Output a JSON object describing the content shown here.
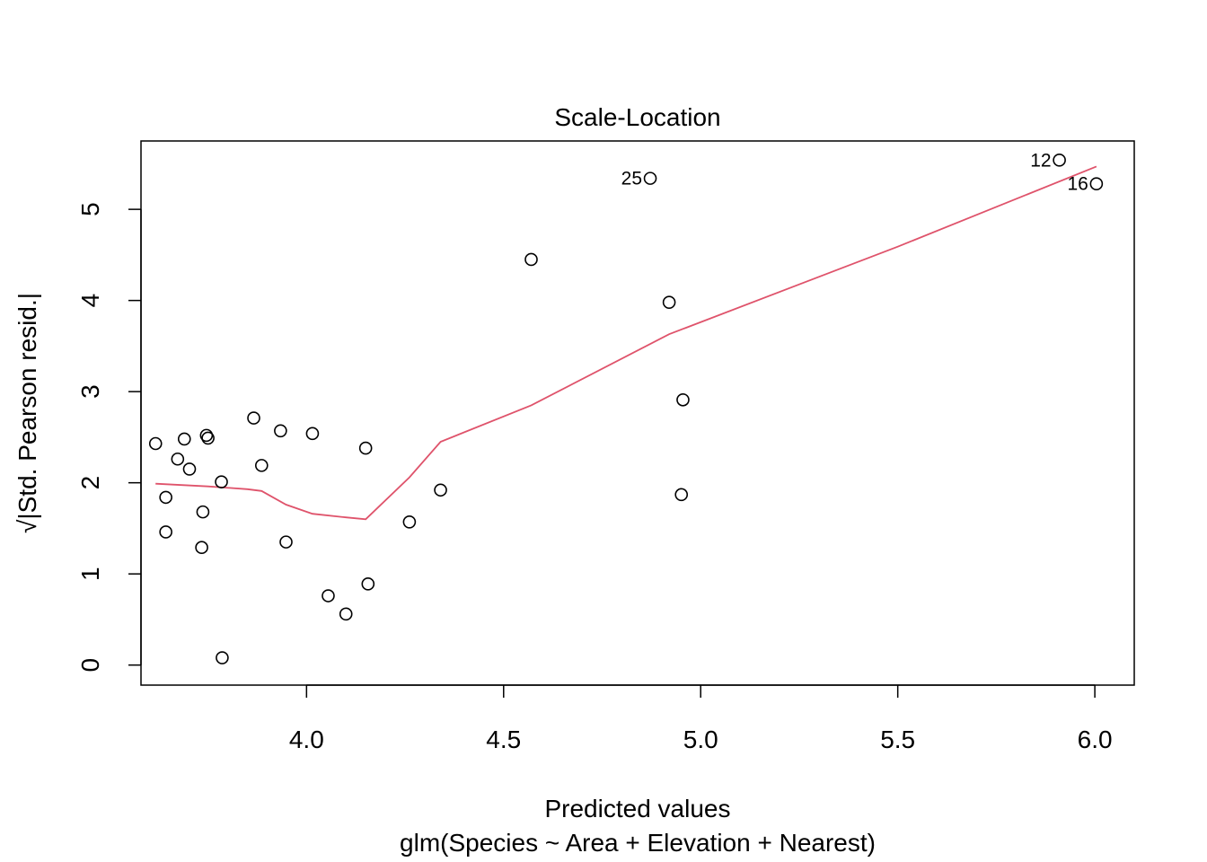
{
  "chart_data": {
    "type": "scatter",
    "title": "Scale-Location",
    "xlabel": "Predicted values",
    "subtitle": "glm(Species ~ Area + Elevation + Nearest)",
    "ylabel": "√|Std. Pearson resid.|",
    "xlim": [
      3.58,
      6.1
    ],
    "ylim": [
      -0.22,
      5.75
    ],
    "x_ticks": [
      4.0,
      4.5,
      5.0,
      5.5,
      6.0
    ],
    "x_tick_labels": [
      "4.0",
      "4.5",
      "5.0",
      "5.5",
      "6.0"
    ],
    "y_ticks": [
      0,
      1,
      2,
      3,
      4,
      5
    ],
    "y_tick_labels": [
      "0",
      "1",
      "2",
      "3",
      "4",
      "5"
    ],
    "points": [
      {
        "x": 3.617,
        "y": 2.43
      },
      {
        "x": 3.643,
        "y": 1.84
      },
      {
        "x": 3.643,
        "y": 1.46
      },
      {
        "x": 3.673,
        "y": 2.26
      },
      {
        "x": 3.69,
        "y": 2.48
      },
      {
        "x": 3.703,
        "y": 2.15
      },
      {
        "x": 3.734,
        "y": 1.29
      },
      {
        "x": 3.737,
        "y": 1.68
      },
      {
        "x": 3.746,
        "y": 2.52
      },
      {
        "x": 3.75,
        "y": 2.49
      },
      {
        "x": 3.784,
        "y": 2.01
      },
      {
        "x": 3.786,
        "y": 0.08
      },
      {
        "x": 3.866,
        "y": 2.71
      },
      {
        "x": 3.886,
        "y": 2.19
      },
      {
        "x": 3.934,
        "y": 2.57
      },
      {
        "x": 3.948,
        "y": 1.35
      },
      {
        "x": 4.015,
        "y": 2.54
      },
      {
        "x": 4.055,
        "y": 0.76
      },
      {
        "x": 4.1,
        "y": 0.56
      },
      {
        "x": 4.15,
        "y": 2.38
      },
      {
        "x": 4.156,
        "y": 0.89
      },
      {
        "x": 4.261,
        "y": 1.57
      },
      {
        "x": 4.34,
        "y": 1.92
      },
      {
        "x": 4.57,
        "y": 4.45
      },
      {
        "x": 4.872,
        "y": 5.34,
        "label": "25"
      },
      {
        "x": 4.92,
        "y": 3.98
      },
      {
        "x": 4.951,
        "y": 1.87
      },
      {
        "x": 4.955,
        "y": 2.91
      },
      {
        "x": 5.91,
        "y": 5.54,
        "label": "12"
      },
      {
        "x": 6.004,
        "y": 5.28,
        "label": "16"
      }
    ],
    "smooth_line": {
      "color": "#DF536B",
      "points": [
        [
          3.617,
          1.99
        ],
        [
          3.75,
          1.96
        ],
        [
          3.85,
          1.93
        ],
        [
          3.886,
          1.91
        ],
        [
          3.948,
          1.76
        ],
        [
          4.015,
          1.66
        ],
        [
          4.1,
          1.62
        ],
        [
          4.15,
          1.6
        ],
        [
          4.261,
          2.06
        ],
        [
          4.34,
          2.45
        ],
        [
          4.57,
          2.85
        ],
        [
          4.92,
          3.63
        ],
        [
          5.5,
          4.59
        ],
        [
          6.004,
          5.47
        ]
      ]
    },
    "point_style": "open-circle",
    "grid": false,
    "legend": "none"
  }
}
